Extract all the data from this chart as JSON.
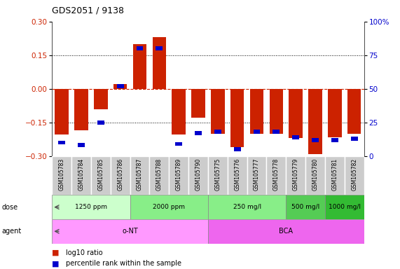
{
  "title": "GDS2051 / 9138",
  "samples": [
    "GSM105783",
    "GSM105784",
    "GSM105785",
    "GSM105786",
    "GSM105787",
    "GSM105788",
    "GSM105789",
    "GSM105790",
    "GSM105775",
    "GSM105776",
    "GSM105777",
    "GSM105778",
    "GSM105779",
    "GSM105780",
    "GSM105781",
    "GSM105782"
  ],
  "log10_ratio": [
    -0.205,
    -0.185,
    -0.09,
    0.02,
    0.2,
    0.23,
    -0.205,
    -0.13,
    -0.2,
    -0.26,
    -0.2,
    -0.2,
    -0.22,
    -0.29,
    -0.215,
    -0.2
  ],
  "percentile_rank": [
    10,
    8,
    25,
    52,
    80,
    80,
    9,
    17,
    18,
    5,
    18,
    18,
    14,
    12,
    12,
    13
  ],
  "ylim": [
    -0.3,
    0.3
  ],
  "yticks": [
    -0.3,
    -0.15,
    0,
    0.15,
    0.3
  ],
  "y2ticks": [
    0,
    25,
    50,
    75,
    100
  ],
  "bar_color": "#cc2200",
  "square_color": "#0000cc",
  "dose_groups": [
    {
      "label": "1250 ppm",
      "start": 0,
      "end": 4,
      "color": "#ccffcc"
    },
    {
      "label": "2000 ppm",
      "start": 4,
      "end": 8,
      "color": "#88ee88"
    },
    {
      "label": "250 mg/l",
      "start": 8,
      "end": 12,
      "color": "#88ee88"
    },
    {
      "label": "500 mg/l",
      "start": 12,
      "end": 14,
      "color": "#55cc55"
    },
    {
      "label": "1000 mg/l",
      "start": 14,
      "end": 16,
      "color": "#33bb33"
    }
  ],
  "agent_groups": [
    {
      "label": "o-NT",
      "start": 0,
      "end": 8,
      "color": "#ff99ff"
    },
    {
      "label": "BCA",
      "start": 8,
      "end": 16,
      "color": "#ee66ee"
    }
  ],
  "zero_line_color": "#cc2200",
  "dotted_line_color": "#000000",
  "tick_label_color_left": "#cc2200",
  "tick_label_color_right": "#0000cc",
  "xlabels_bg": "#cccccc",
  "xlabels_border": "#ffffff"
}
